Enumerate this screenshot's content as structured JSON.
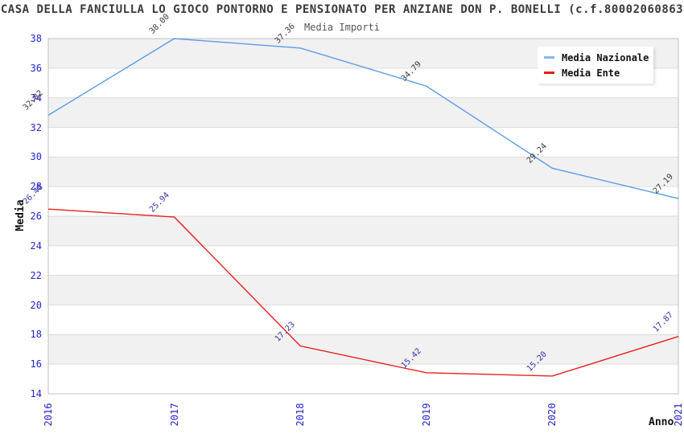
{
  "title": "CASA DELLA FANCIULLA LO GIOCO PONTORNO E PENSIONATO PER ANZIANE DON P. BONELLI (c.f.80002060863",
  "subtitle": "Media Importi",
  "axes": {
    "y_label": "Media",
    "x_label": "Anno"
  },
  "legend": {
    "position": "top-right",
    "items": [
      {
        "label": "Media Nazionale",
        "color": "#85b7ea"
      },
      {
        "label": "Media Ente",
        "color": "#e81c1c"
      }
    ]
  },
  "chart_data": {
    "type": "line",
    "title": "Media Importi",
    "xlabel": "Anno",
    "ylabel": "Media",
    "x": [
      "2016",
      "2017",
      "2018",
      "2019",
      "2020",
      "2021"
    ],
    "series": [
      {
        "name": "Media Nazionale",
        "color": "#5b9ce8",
        "label_color": "#3a3a3a",
        "values": [
          32.82,
          38.0,
          37.36,
          34.79,
          29.24,
          27.19
        ]
      },
      {
        "name": "Media Ente",
        "color": "#e82020",
        "label_color": "#3535a5",
        "values": [
          26.48,
          25.94,
          17.23,
          15.42,
          15.2,
          17.87
        ]
      }
    ],
    "ylim": [
      14,
      38
    ],
    "ytick_step": 2,
    "grid": "horizontal, alternating shaded bands",
    "band_color": "#f1f1f1",
    "gridline_color": "#dcdcdc",
    "border_color": "#c0c0c0",
    "tick_label_color": "#2424cc",
    "legend_position": "top-right"
  }
}
